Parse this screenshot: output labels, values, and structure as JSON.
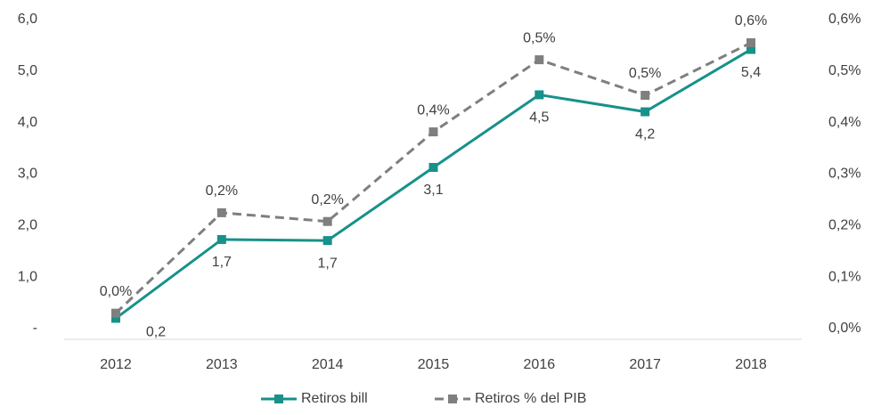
{
  "chart_data": {
    "type": "line",
    "categories": [
      "2012",
      "2013",
      "2014",
      "2015",
      "2016",
      "2017",
      "2018"
    ],
    "series": [
      {
        "name": "Retiros bill",
        "color": "#17918a",
        "axis": "y",
        "values": [
          0.2,
          1.73,
          1.71,
          3.13,
          4.54,
          4.21,
          5.42
        ],
        "value_labels": [
          "0,2",
          "1,7",
          "1,7",
          "3,1",
          "4,5",
          "4,2",
          "5,4"
        ]
      },
      {
        "name": "Retiros % del PIB",
        "color": "#7f7f7f",
        "axis": "y2",
        "dashed": true,
        "values": [
          0.03,
          0.225,
          0.208,
          0.382,
          0.522,
          0.453,
          0.555
        ],
        "value_labels": [
          "0,0%",
          "0,2%",
          "0,2%",
          "0,4%",
          "0,5%",
          "0,5%",
          "0,6%"
        ]
      }
    ],
    "ylim": [
      0,
      6
    ],
    "yticks": [
      {
        "value": 0,
        "label": "-"
      },
      {
        "value": 1,
        "label": "1,0"
      },
      {
        "value": 2,
        "label": "2,0"
      },
      {
        "value": 3,
        "label": "3,0"
      },
      {
        "value": 4,
        "label": "4,0"
      },
      {
        "value": 5,
        "label": "5,0"
      },
      {
        "value": 6,
        "label": "6,0"
      }
    ],
    "y2lim": [
      0,
      0.6
    ],
    "y2ticks": [
      {
        "value": 0,
        "label": "0,0%"
      },
      {
        "value": 0.1,
        "label": "0,1%"
      },
      {
        "value": 0.2,
        "label": "0,2%"
      },
      {
        "value": 0.3,
        "label": "0,3%"
      },
      {
        "value": 0.4,
        "label": "0,4%"
      },
      {
        "value": 0.5,
        "label": "0,5%"
      },
      {
        "value": 0.6,
        "label": "0,6%"
      }
    ],
    "grid": false,
    "legend": "bottom"
  }
}
